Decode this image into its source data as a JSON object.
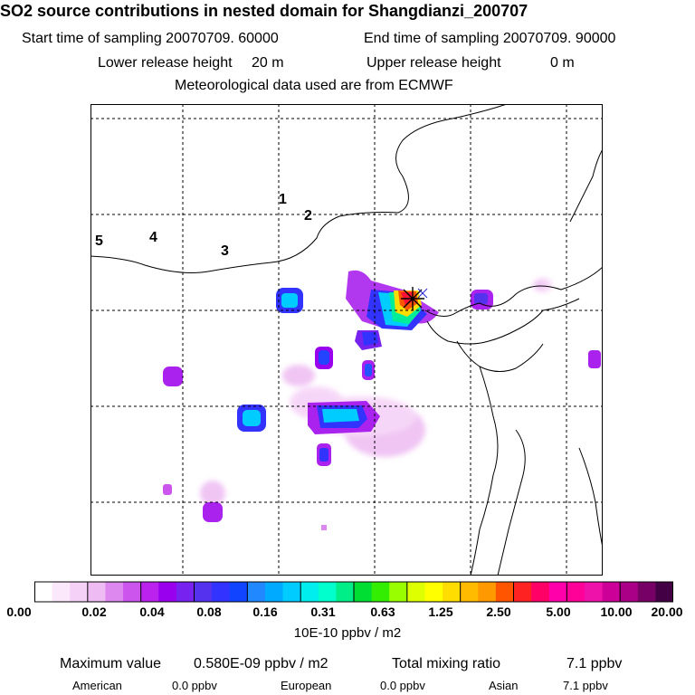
{
  "header": {
    "title": "SO2 source contributions in nested domain for Shangdianzi_200707",
    "start_label": "Start time of sampling 20070709. 60000",
    "end_label": "End time of sampling 20070709. 90000",
    "lower_label": "Lower release height",
    "lower_value": "20 m",
    "upper_label": "Upper release height",
    "upper_value": "0 m",
    "met_line": "Meteorological data used are from ECMWF"
  },
  "map": {
    "region_labels": [
      "1",
      "2",
      "3",
      "4",
      "5"
    ],
    "receptor_marker": "receptor-star-icon"
  },
  "colorbar": {
    "colors": [
      "#ffffff",
      "#fbe8fb",
      "#f5d0f7",
      "#eebbf2",
      "#dd88ee",
      "#cc55ee",
      "#bb22ee",
      "#9900ee",
      "#7722ee",
      "#5533ee",
      "#3333ff",
      "#1144ff",
      "#2288ff",
      "#00aaff",
      "#00ccff",
      "#00eeee",
      "#00ffcc",
      "#00ee88",
      "#00dd33",
      "#33ee00",
      "#99ff00",
      "#ddff00",
      "#ffff00",
      "#ffdd00",
      "#ffbb00",
      "#ff9900",
      "#ff5500",
      "#ff2222",
      "#ff0066",
      "#ff00aa",
      "#ff0099",
      "#ee11aa",
      "#cc0099",
      "#aa0088",
      "#770066",
      "#440044"
    ],
    "tick_labels": [
      "0.00",
      "0.02",
      "0.04",
      "0.08",
      "0.16",
      "0.31",
      "0.63",
      "1.25",
      "2.50",
      "5.00",
      "10.00",
      "20.00"
    ],
    "unit": "10E-10 ppbv / m2"
  },
  "stats": {
    "max_label": "Maximum value",
    "max_value": "0.580E-09 ppbv / m2",
    "total_label": "Total mixing ratio",
    "total_value": "7.1 ppbv",
    "american_label": "American",
    "american_value": "0.0 ppbv",
    "european_label": "European",
    "european_value": "0.0 ppbv",
    "asian_label": "Asian",
    "asian_value": "7.1 ppbv"
  }
}
